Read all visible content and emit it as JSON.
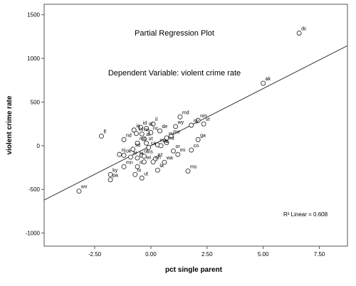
{
  "chart_data": {
    "type": "scatter",
    "title": "Partial Regression Plot",
    "subtitle": "Dependent Variable: violent crime rate",
    "xlabel": "pct single parent",
    "ylabel": "violent crime rate",
    "xlim": [
      -4.75,
      8.75
    ],
    "ylim": [
      -1150,
      1620
    ],
    "x_ticks": [
      -2.5,
      0,
      2.5,
      5,
      7.5
    ],
    "x_tick_labels": [
      "-2.50",
      "0.00",
      "2.50",
      "5.00",
      "7.50"
    ],
    "y_ticks": [
      -1000,
      -500,
      0,
      500,
      1000,
      1500
    ],
    "y_tick_labels": [
      "-1000",
      "-500",
      "0",
      "500",
      "1000",
      "1500"
    ],
    "grid": false,
    "fit_line": {
      "slope": 131,
      "intercept": 0,
      "r2_label": "R² Linear = 0.608"
    },
    "points": [
      {
        "label": "dc",
        "x": 6.6,
        "y": 1290
      },
      {
        "label": "ak",
        "x": 5.0,
        "y": 715
      },
      {
        "label": "md",
        "x": 1.3,
        "y": 330
      },
      {
        "label": "nm",
        "x": 2.1,
        "y": 290
      },
      {
        "label": "vt",
        "x": 2.35,
        "y": 250
      },
      {
        "label": "ny",
        "x": 1.8,
        "y": 235
      },
      {
        "label": "wy",
        "x": 1.1,
        "y": 220
      },
      {
        "label": "il",
        "x": 0.1,
        "y": 250
      },
      {
        "label": "id",
        "x": -0.45,
        "y": 210
      },
      {
        "label": "sc",
        "x": -0.2,
        "y": 200
      },
      {
        "label": "ia",
        "x": -0.75,
        "y": 180
      },
      {
        "label": "de",
        "x": 0.4,
        "y": 170
      },
      {
        "label": "nc",
        "x": 0.0,
        "y": 150
      },
      {
        "label": "ks",
        "x": -0.65,
        "y": 140
      },
      {
        "label": "ne",
        "x": -0.4,
        "y": 135
      },
      {
        "label": "me",
        "x": 0.9,
        "y": 110
      },
      {
        "label": "fl",
        "x": -2.2,
        "y": 110
      },
      {
        "label": "ga",
        "x": 2.1,
        "y": 70
      },
      {
        "label": "nv",
        "x": 0.7,
        "y": 90
      },
      {
        "label": "al",
        "x": -0.3,
        "y": 80
      },
      {
        "label": "nd",
        "x": -1.2,
        "y": 70
      },
      {
        "label": "mt",
        "x": 0.7,
        "y": 35
      },
      {
        "label": "mo",
        "x": -0.6,
        "y": 30
      },
      {
        "label": "ut",
        "x": -0.2,
        "y": 30
      },
      {
        "label": "ma",
        "x": 0.3,
        "y": 10
      },
      {
        "label": "va",
        "x": 0.45,
        "y": 0
      },
      {
        "label": "sd",
        "x": -0.8,
        "y": -40
      },
      {
        "label": "ca",
        "x": -0.1,
        "y": -20
      },
      {
        "label": "co",
        "x": 1.8,
        "y": -50
      },
      {
        "label": "or",
        "x": 1.0,
        "y": -60
      },
      {
        "label": "mi",
        "x": 1.2,
        "y": -100
      },
      {
        "label": "nj",
        "x": -1.4,
        "y": -100
      },
      {
        "label": "ok",
        "x": -1.2,
        "y": -110
      },
      {
        "label": "ar",
        "x": -0.9,
        "y": -130
      },
      {
        "label": "hi",
        "x": -0.6,
        "y": -140
      },
      {
        "label": "ct",
        "x": -0.4,
        "y": -110
      },
      {
        "label": "ms",
        "x": -0.3,
        "y": -120
      },
      {
        "label": "az",
        "x": 0.2,
        "y": -150
      },
      {
        "label": "wi",
        "x": -0.3,
        "y": -185
      },
      {
        "label": "oh",
        "x": 0.1,
        "y": -185
      },
      {
        "label": "wa",
        "x": 0.6,
        "y": -190
      },
      {
        "label": "mn",
        "x": -1.2,
        "y": -240
      },
      {
        "label": "ri",
        "x": -0.6,
        "y": -240
      },
      {
        "label": "la",
        "x": 0.3,
        "y": -280
      },
      {
        "label": "tx",
        "x": -0.7,
        "y": -330
      },
      {
        "label": "ky",
        "x": -1.8,
        "y": -330
      },
      {
        "label": "pa",
        "x": -1.8,
        "y": -390
      },
      {
        "label": "ut",
        "x": -0.4,
        "y": -370
      },
      {
        "label": "ms",
        "x": 1.65,
        "y": -290
      },
      {
        "label": "wv",
        "x": -3.2,
        "y": -520
      }
    ]
  }
}
